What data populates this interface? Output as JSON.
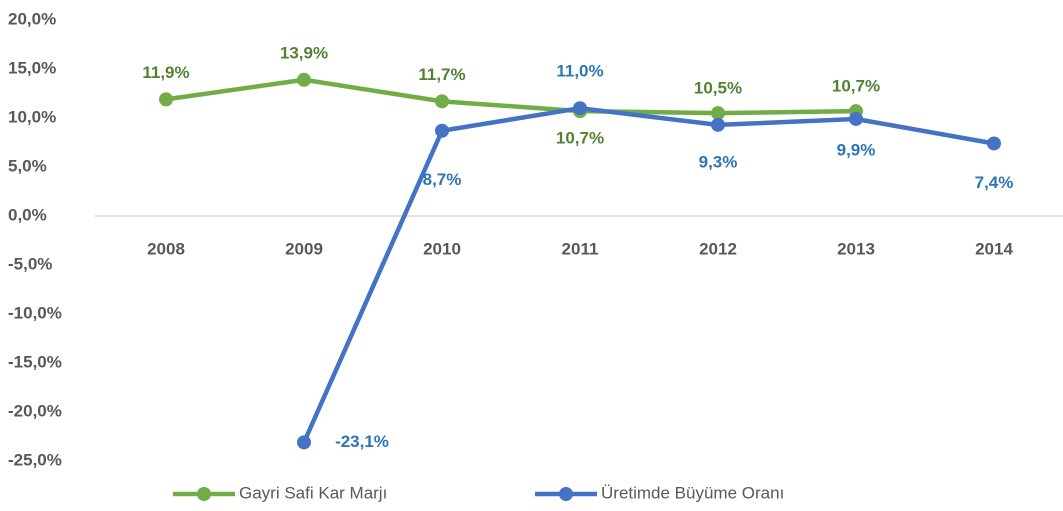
{
  "chart_data": {
    "type": "line",
    "categories": [
      "2008",
      "2009",
      "2010",
      "2011",
      "2012",
      "2013",
      "2014"
    ],
    "series": [
      {
        "name": "Gayri Safi Kar Marjı",
        "color": "#70ad47",
        "label_color": "#548235",
        "values": [
          11.9,
          13.9,
          11.7,
          10.7,
          10.5,
          10.7,
          null
        ],
        "value_labels": [
          "11,9%",
          "13,9%",
          "11,7%",
          "10,7%",
          "10,5%",
          "10,7%",
          null
        ]
      },
      {
        "name": "Üretimde Büyüme Oranı",
        "color": "#4472c4",
        "label_color": "#2e75b6",
        "values": [
          null,
          -23.1,
          8.7,
          11.0,
          9.3,
          9.9,
          7.4
        ],
        "value_labels": [
          null,
          "-23,1%",
          "8,7%",
          "11,0%",
          "9,3%",
          "9,9%",
          "7,4%"
        ]
      }
    ],
    "ylim": [
      -25,
      20
    ],
    "yticks": [
      {
        "value": -25,
        "label": "-25,0%"
      },
      {
        "value": -20,
        "label": "-20,0%"
      },
      {
        "value": -15,
        "label": "-15,0%"
      },
      {
        "value": -10,
        "label": "-10,0%"
      },
      {
        "value": -5,
        "label": "-5,0%"
      },
      {
        "value": 0,
        "label": "0,0%"
      },
      {
        "value": 5,
        "label": "5,0%"
      },
      {
        "value": 10,
        "label": "10,0%"
      },
      {
        "value": 15,
        "label": "15,0%"
      },
      {
        "value": 20,
        "label": "20,0%"
      }
    ],
    "legend": "bottom",
    "grid": false
  }
}
